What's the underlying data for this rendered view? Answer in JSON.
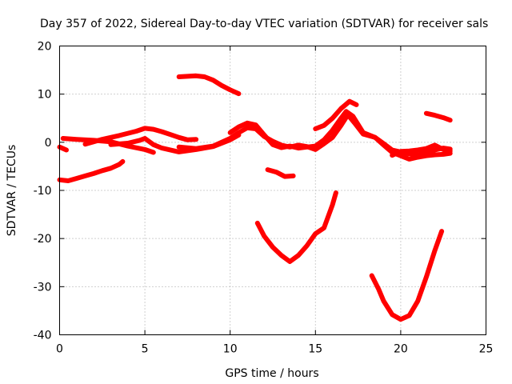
{
  "chart_data": {
    "type": "line",
    "title": "Day 357 of 2022, Sidereal Day-to-day VTEC variation (SDTVAR) for receiver sals",
    "xlabel": "GPS time / hours",
    "ylabel": "SDTVAR / TECUs",
    "xlim": [
      0,
      25
    ],
    "ylim": [
      -40,
      20
    ],
    "xticks": [
      0,
      5,
      10,
      15,
      20,
      25
    ],
    "yticks": [
      -40,
      -30,
      -20,
      -10,
      0,
      10,
      20
    ],
    "xtick_labels": [
      "0",
      "5",
      "10",
      "15",
      "20",
      "25"
    ],
    "ytick_labels": [
      "-40",
      "-30",
      "-20",
      "-10",
      "0",
      "10",
      "20"
    ],
    "grid": true,
    "legend": "none",
    "series_color": "#ff0000",
    "series": [
      {
        "name": "trace-01",
        "points": [
          [
            0.0,
            -1.0
          ],
          [
            0.4,
            -1.6
          ]
        ]
      },
      {
        "name": "trace-02",
        "points": [
          [
            0.0,
            -7.8
          ],
          [
            0.5,
            -8.0
          ],
          [
            1.0,
            -7.5
          ],
          [
            1.5,
            -7.0
          ],
          [
            2.0,
            -6.5
          ],
          [
            2.5,
            -5.9
          ],
          [
            3.0,
            -5.4
          ],
          [
            3.5,
            -4.6
          ],
          [
            3.7,
            -4.0
          ]
        ]
      },
      {
        "name": "trace-03",
        "points": [
          [
            0.2,
            0.8
          ],
          [
            1.0,
            0.6
          ],
          [
            2.0,
            0.4
          ],
          [
            3.0,
            0.1
          ],
          [
            4.0,
            -0.8
          ],
          [
            5.0,
            -1.5
          ],
          [
            5.5,
            -2.1
          ]
        ]
      },
      {
        "name": "trace-04",
        "points": [
          [
            1.5,
            -0.4
          ],
          [
            2.5,
            0.6
          ],
          [
            3.5,
            1.4
          ],
          [
            4.5,
            2.3
          ],
          [
            5.0,
            2.9
          ],
          [
            5.5,
            2.7
          ],
          [
            6.0,
            2.2
          ],
          [
            6.5,
            1.6
          ],
          [
            7.0,
            1.0
          ],
          [
            7.5,
            0.5
          ],
          [
            8.0,
            0.6
          ]
        ]
      },
      {
        "name": "trace-05",
        "points": [
          [
            3.0,
            -0.5
          ],
          [
            4.0,
            -0.2
          ],
          [
            4.7,
            0.4
          ],
          [
            5.0,
            0.8
          ],
          [
            5.5,
            -0.5
          ],
          [
            6.0,
            -1.2
          ],
          [
            7.0,
            -2.0
          ],
          [
            8.0,
            -1.5
          ],
          [
            9.0,
            -0.9
          ],
          [
            10.0,
            0.5
          ],
          [
            10.5,
            1.5
          ]
        ]
      },
      {
        "name": "trace-06",
        "points": [
          [
            7.0,
            -1.0
          ],
          [
            8.0,
            -1.3
          ],
          [
            9.0,
            -0.8
          ],
          [
            10.0,
            0.8
          ],
          [
            10.5,
            2.0
          ],
          [
            11.0,
            3.0
          ],
          [
            11.5,
            2.8
          ],
          [
            12.0,
            1.2
          ],
          [
            12.5,
            0.2
          ],
          [
            13.0,
            -0.6
          ],
          [
            13.5,
            -1.0
          ],
          [
            14.0,
            -0.6
          ],
          [
            14.5,
            -0.9
          ],
          [
            15.0,
            -1.5
          ],
          [
            15.5,
            -0.3
          ],
          [
            16.0,
            1.0
          ],
          [
            16.5,
            3.5
          ],
          [
            16.9,
            5.7
          ],
          [
            17.3,
            4.0
          ],
          [
            17.8,
            1.7
          ],
          [
            18.5,
            1.0
          ],
          [
            19.0,
            -0.3
          ],
          [
            19.5,
            -1.6
          ],
          [
            20.0,
            -2.0
          ],
          [
            20.5,
            -2.4
          ],
          [
            21.0,
            -2.6
          ],
          [
            21.5,
            -2.1
          ],
          [
            22.0,
            -1.6
          ],
          [
            22.5,
            -1.2
          ],
          [
            22.9,
            -1.4
          ]
        ]
      },
      {
        "name": "trace-07",
        "points": [
          [
            10.0,
            2.0
          ],
          [
            10.5,
            3.2
          ],
          [
            11.0,
            4.0
          ],
          [
            11.5,
            3.6
          ],
          [
            12.0,
            1.5
          ],
          [
            12.5,
            -0.5
          ],
          [
            13.0,
            -1.1
          ],
          [
            13.5,
            -0.8
          ],
          [
            14.0,
            -1.2
          ],
          [
            14.5,
            -1.0
          ],
          [
            15.0,
            -0.8
          ],
          [
            15.5,
            0.5
          ],
          [
            16.0,
            2.5
          ],
          [
            16.5,
            5.0
          ],
          [
            16.8,
            6.4
          ],
          [
            17.2,
            5.4
          ],
          [
            17.8,
            2.0
          ],
          [
            18.5,
            1.0
          ],
          [
            19.0,
            -0.6
          ],
          [
            19.5,
            -2.1
          ],
          [
            20.0,
            -2.8
          ],
          [
            20.5,
            -3.5
          ],
          [
            21.0,
            -3.1
          ],
          [
            21.5,
            -2.8
          ],
          [
            22.0,
            -2.6
          ],
          [
            22.5,
            -2.5
          ],
          [
            22.9,
            -2.3
          ]
        ]
      },
      {
        "name": "trace-08",
        "points": [
          [
            7.0,
            13.6
          ],
          [
            7.5,
            13.7
          ],
          [
            8.0,
            13.8
          ],
          [
            8.5,
            13.6
          ],
          [
            9.0,
            12.9
          ],
          [
            9.5,
            11.8
          ],
          [
            10.0,
            10.9
          ],
          [
            10.5,
            10.1
          ]
        ]
      },
      {
        "name": "trace-09",
        "points": [
          [
            12.2,
            -5.7
          ],
          [
            12.7,
            -6.2
          ],
          [
            13.2,
            -7.1
          ],
          [
            13.7,
            -7.0
          ]
        ]
      },
      {
        "name": "trace-10",
        "points": [
          [
            11.6,
            -16.8
          ],
          [
            12.0,
            -19.5
          ],
          [
            12.5,
            -21.8
          ],
          [
            13.0,
            -23.5
          ],
          [
            13.5,
            -24.8
          ],
          [
            14.0,
            -23.5
          ],
          [
            14.5,
            -21.5
          ],
          [
            15.0,
            -19.0
          ],
          [
            15.5,
            -17.8
          ],
          [
            16.0,
            -13.0
          ],
          [
            16.2,
            -10.5
          ]
        ]
      },
      {
        "name": "trace-11",
        "points": [
          [
            15.0,
            2.8
          ],
          [
            15.5,
            3.5
          ],
          [
            16.0,
            5.0
          ],
          [
            16.5,
            7.0
          ],
          [
            17.0,
            8.5
          ],
          [
            17.4,
            7.8
          ]
        ]
      },
      {
        "name": "trace-12",
        "points": [
          [
            18.3,
            -27.7
          ],
          [
            18.7,
            -30.5
          ],
          [
            19.0,
            -33.0
          ],
          [
            19.5,
            -35.8
          ],
          [
            20.0,
            -36.8
          ],
          [
            20.5,
            -36.0
          ],
          [
            21.0,
            -33.0
          ],
          [
            21.5,
            -28.0
          ],
          [
            22.0,
            -22.5
          ],
          [
            22.4,
            -18.5
          ]
        ]
      },
      {
        "name": "trace-13",
        "points": [
          [
            21.5,
            6.0
          ],
          [
            22.0,
            5.6
          ],
          [
            22.5,
            5.1
          ],
          [
            22.9,
            4.6
          ]
        ]
      },
      {
        "name": "trace-14",
        "points": [
          [
            19.5,
            -2.7
          ],
          [
            20.0,
            -1.9
          ],
          [
            20.5,
            -1.8
          ],
          [
            21.0,
            -1.6
          ],
          [
            21.5,
            -1.3
          ],
          [
            22.0,
            -0.6
          ],
          [
            22.5,
            -1.5
          ],
          [
            22.9,
            -1.8
          ]
        ]
      }
    ]
  }
}
